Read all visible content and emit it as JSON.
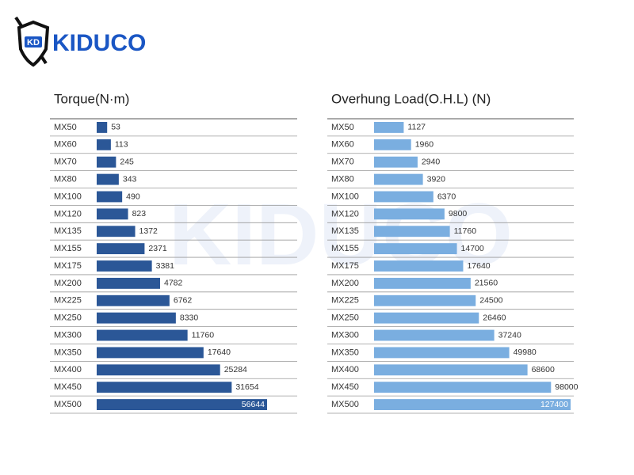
{
  "logo": {
    "text": "KIDUCO"
  },
  "chart_data": [
    {
      "type": "bar",
      "orientation": "horizontal",
      "title": "Torque(N·m)",
      "color": "#2b5797",
      "categories": [
        "MX50",
        "MX60",
        "MX70",
        "MX80",
        "MX100",
        "MX120",
        "MX135",
        "MX155",
        "MX175",
        "MX200",
        "MX225",
        "MX250",
        "MX300",
        "MX350",
        "MX400",
        "MX450",
        "MX500"
      ],
      "values": [
        53,
        113,
        245,
        343,
        490,
        823,
        1372,
        2371,
        3381,
        4782,
        6762,
        8330,
        11760,
        17640,
        25284,
        31654,
        56644
      ]
    },
    {
      "type": "bar",
      "orientation": "horizontal",
      "title": "Overhung Load(O.H.L) (N)",
      "color": "#7aaee0",
      "categories": [
        "MX50",
        "MX60",
        "MX70",
        "MX80",
        "MX100",
        "MX120",
        "MX135",
        "MX155",
        "MX175",
        "MX200",
        "MX225",
        "MX250",
        "MX300",
        "MX350",
        "MX400",
        "MX450",
        "MX500"
      ],
      "values": [
        1127,
        1960,
        2940,
        3920,
        6370,
        9800,
        11760,
        14700,
        17640,
        21560,
        24500,
        26460,
        37240,
        49980,
        68600,
        98000,
        127400
      ]
    }
  ]
}
